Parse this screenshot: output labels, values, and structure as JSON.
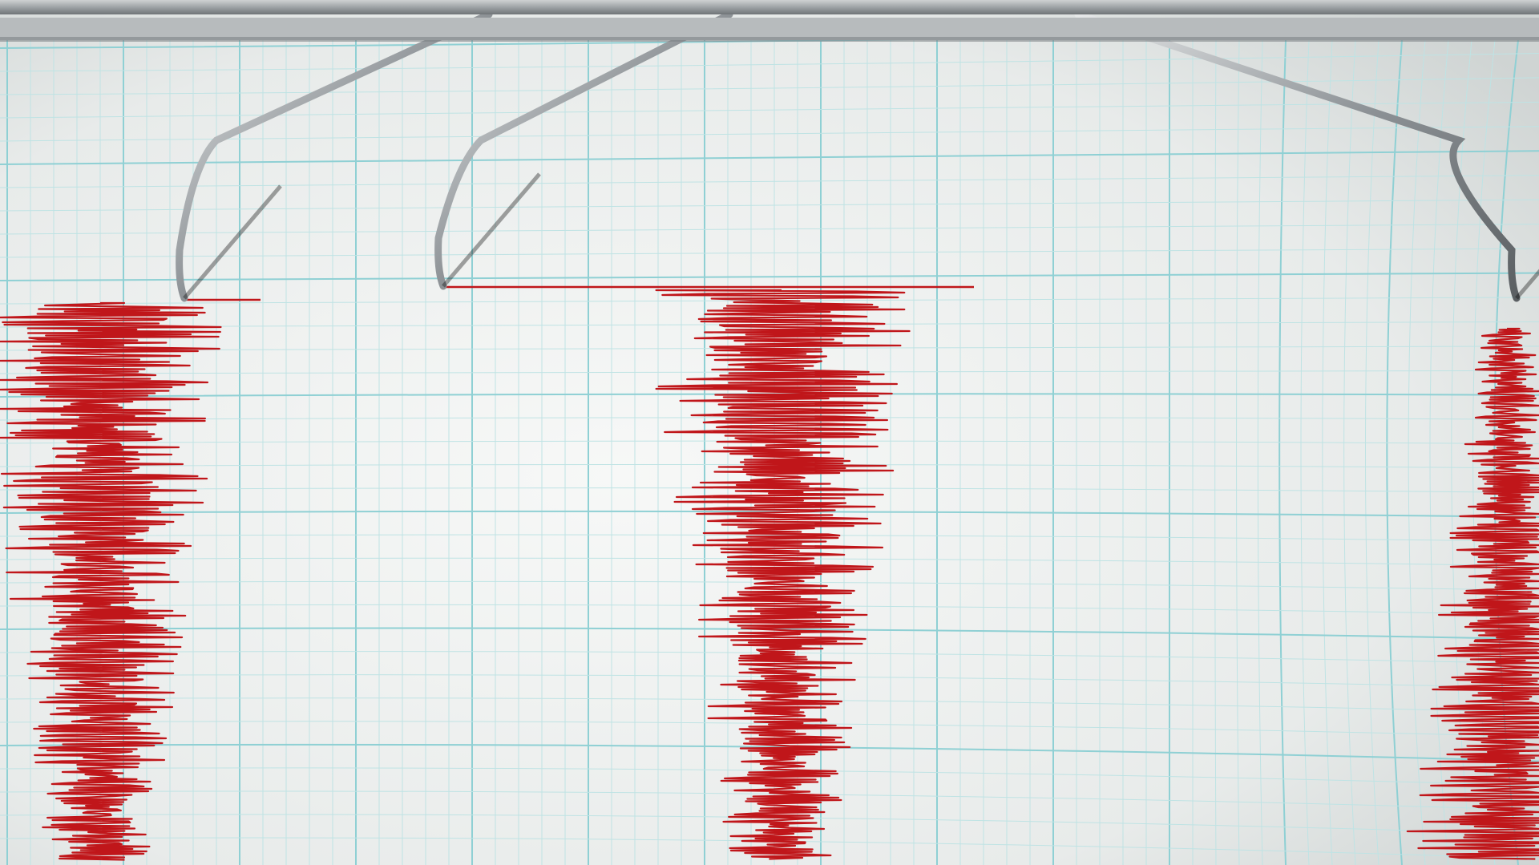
{
  "colors": {
    "paper": "#eef0ef",
    "grid_major": "#8fd0d4",
    "grid_minor": "#bfe3e4",
    "trace": "#c0161a",
    "metal": "#a9adb0",
    "rail": "#8c9194"
  },
  "icons": [
    "seismograph-stylus",
    "seismogram-trace"
  ]
}
